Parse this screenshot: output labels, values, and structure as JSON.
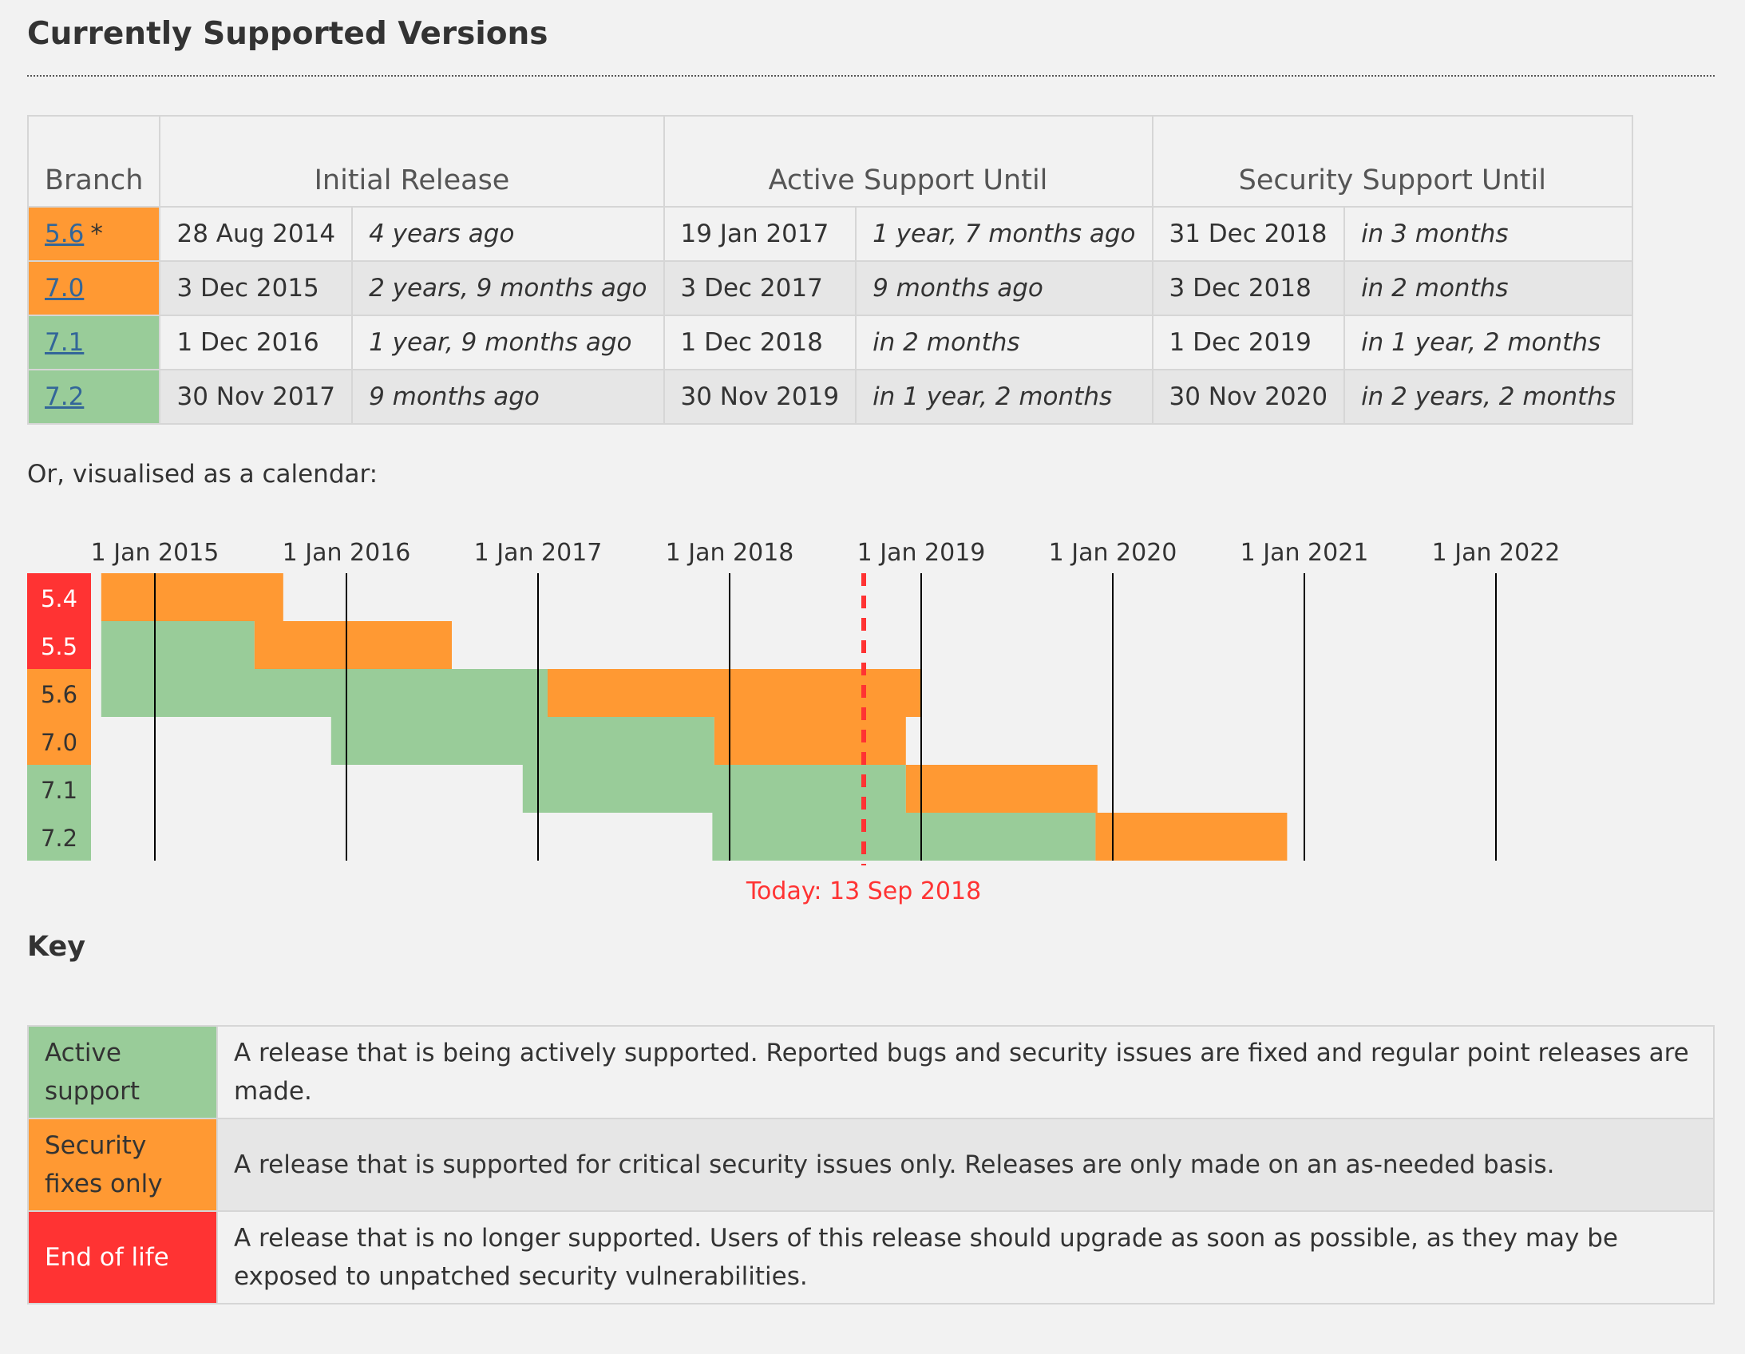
{
  "page": {
    "title": "Currently Supported Versions",
    "calendar_intro": "Or, visualised as a calendar:",
    "key_title": "Key"
  },
  "table": {
    "headers": {
      "branch": "Branch",
      "initial_release": "Initial Release",
      "active_support": "Active Support Until",
      "security_support": "Security Support Until"
    },
    "rows": [
      {
        "branch": "5.6",
        "star": "*",
        "status": "security",
        "initial": "28 Aug 2014",
        "initial_rel": "4 years ago",
        "active": "19 Jan 2017",
        "active_rel": "1 year, 7 months ago",
        "security": "31 Dec 2018",
        "security_rel": "in 3 months"
      },
      {
        "branch": "7.0",
        "star": "",
        "status": "security",
        "initial": "3 Dec 2015",
        "initial_rel": "2 years, 9 months ago",
        "active": "3 Dec 2017",
        "active_rel": "9 months ago",
        "security": "3 Dec 2018",
        "security_rel": "in 2 months"
      },
      {
        "branch": "7.1",
        "star": "",
        "status": "active",
        "initial": "1 Dec 2016",
        "initial_rel": "1 year, 9 months ago",
        "active": "1 Dec 2018",
        "active_rel": "in 2 months",
        "security": "1 Dec 2019",
        "security_rel": "in 1 year, 2 months"
      },
      {
        "branch": "7.2",
        "star": "",
        "status": "active",
        "initial": "30 Nov 2017",
        "initial_rel": "9 months ago",
        "active": "30 Nov 2019",
        "active_rel": "in 1 year, 2 months",
        "security": "30 Nov 2020",
        "security_rel": "in 2 years, 2 months"
      }
    ]
  },
  "calendar": {
    "years": [
      "1 Jan 2015",
      "1 Jan 2016",
      "1 Jan 2017",
      "1 Jan 2018",
      "1 Jan 2019",
      "1 Jan 2020",
      "1 Jan 2021",
      "1 Jan 2022"
    ],
    "start_year": 2014.72,
    "end_year": 2022.0,
    "today_year": 2018.7,
    "today_label": "Today: 13 Sep 2018",
    "branches": [
      {
        "name": "5.4",
        "status": "eol",
        "start": 2014.72,
        "active_end": 2014.72,
        "security_end": 2015.67
      },
      {
        "name": "5.5",
        "status": "eol",
        "start": 2014.72,
        "active_end": 2015.52,
        "security_end": 2016.55
      },
      {
        "name": "5.6",
        "status": "security",
        "start": 2014.72,
        "active_end": 2017.05,
        "security_end": 2019.0
      },
      {
        "name": "7.0",
        "status": "security",
        "start": 2015.92,
        "active_end": 2017.92,
        "security_end": 2018.92
      },
      {
        "name": "7.1",
        "status": "active",
        "start": 2016.92,
        "active_end": 2018.92,
        "security_end": 2019.92
      },
      {
        "name": "7.2",
        "status": "active",
        "start": 2017.91,
        "active_end": 2019.91,
        "security_end": 2020.91
      }
    ]
  },
  "colors": {
    "active": "#99cc99",
    "security": "#ff9933",
    "eol": "#ff3333",
    "today": "#ff3333",
    "gridline": "#000000",
    "eol_text": "#ffffff",
    "label_text": "#333333"
  },
  "key": [
    {
      "label": "Active support",
      "class": "active",
      "description": "A release that is being actively supported. Reported bugs and security issues are fixed and regular point releases are made."
    },
    {
      "label": "Security fixes only",
      "class": "security",
      "description": "A release that is supported for critical security issues only. Releases are only made on an as-needed basis."
    },
    {
      "label": "End of life",
      "class": "eol",
      "description": "A release that is no longer supported. Users of this release should upgrade as soon as possible, as they may be exposed to unpatched security vulnerabilities."
    }
  ]
}
